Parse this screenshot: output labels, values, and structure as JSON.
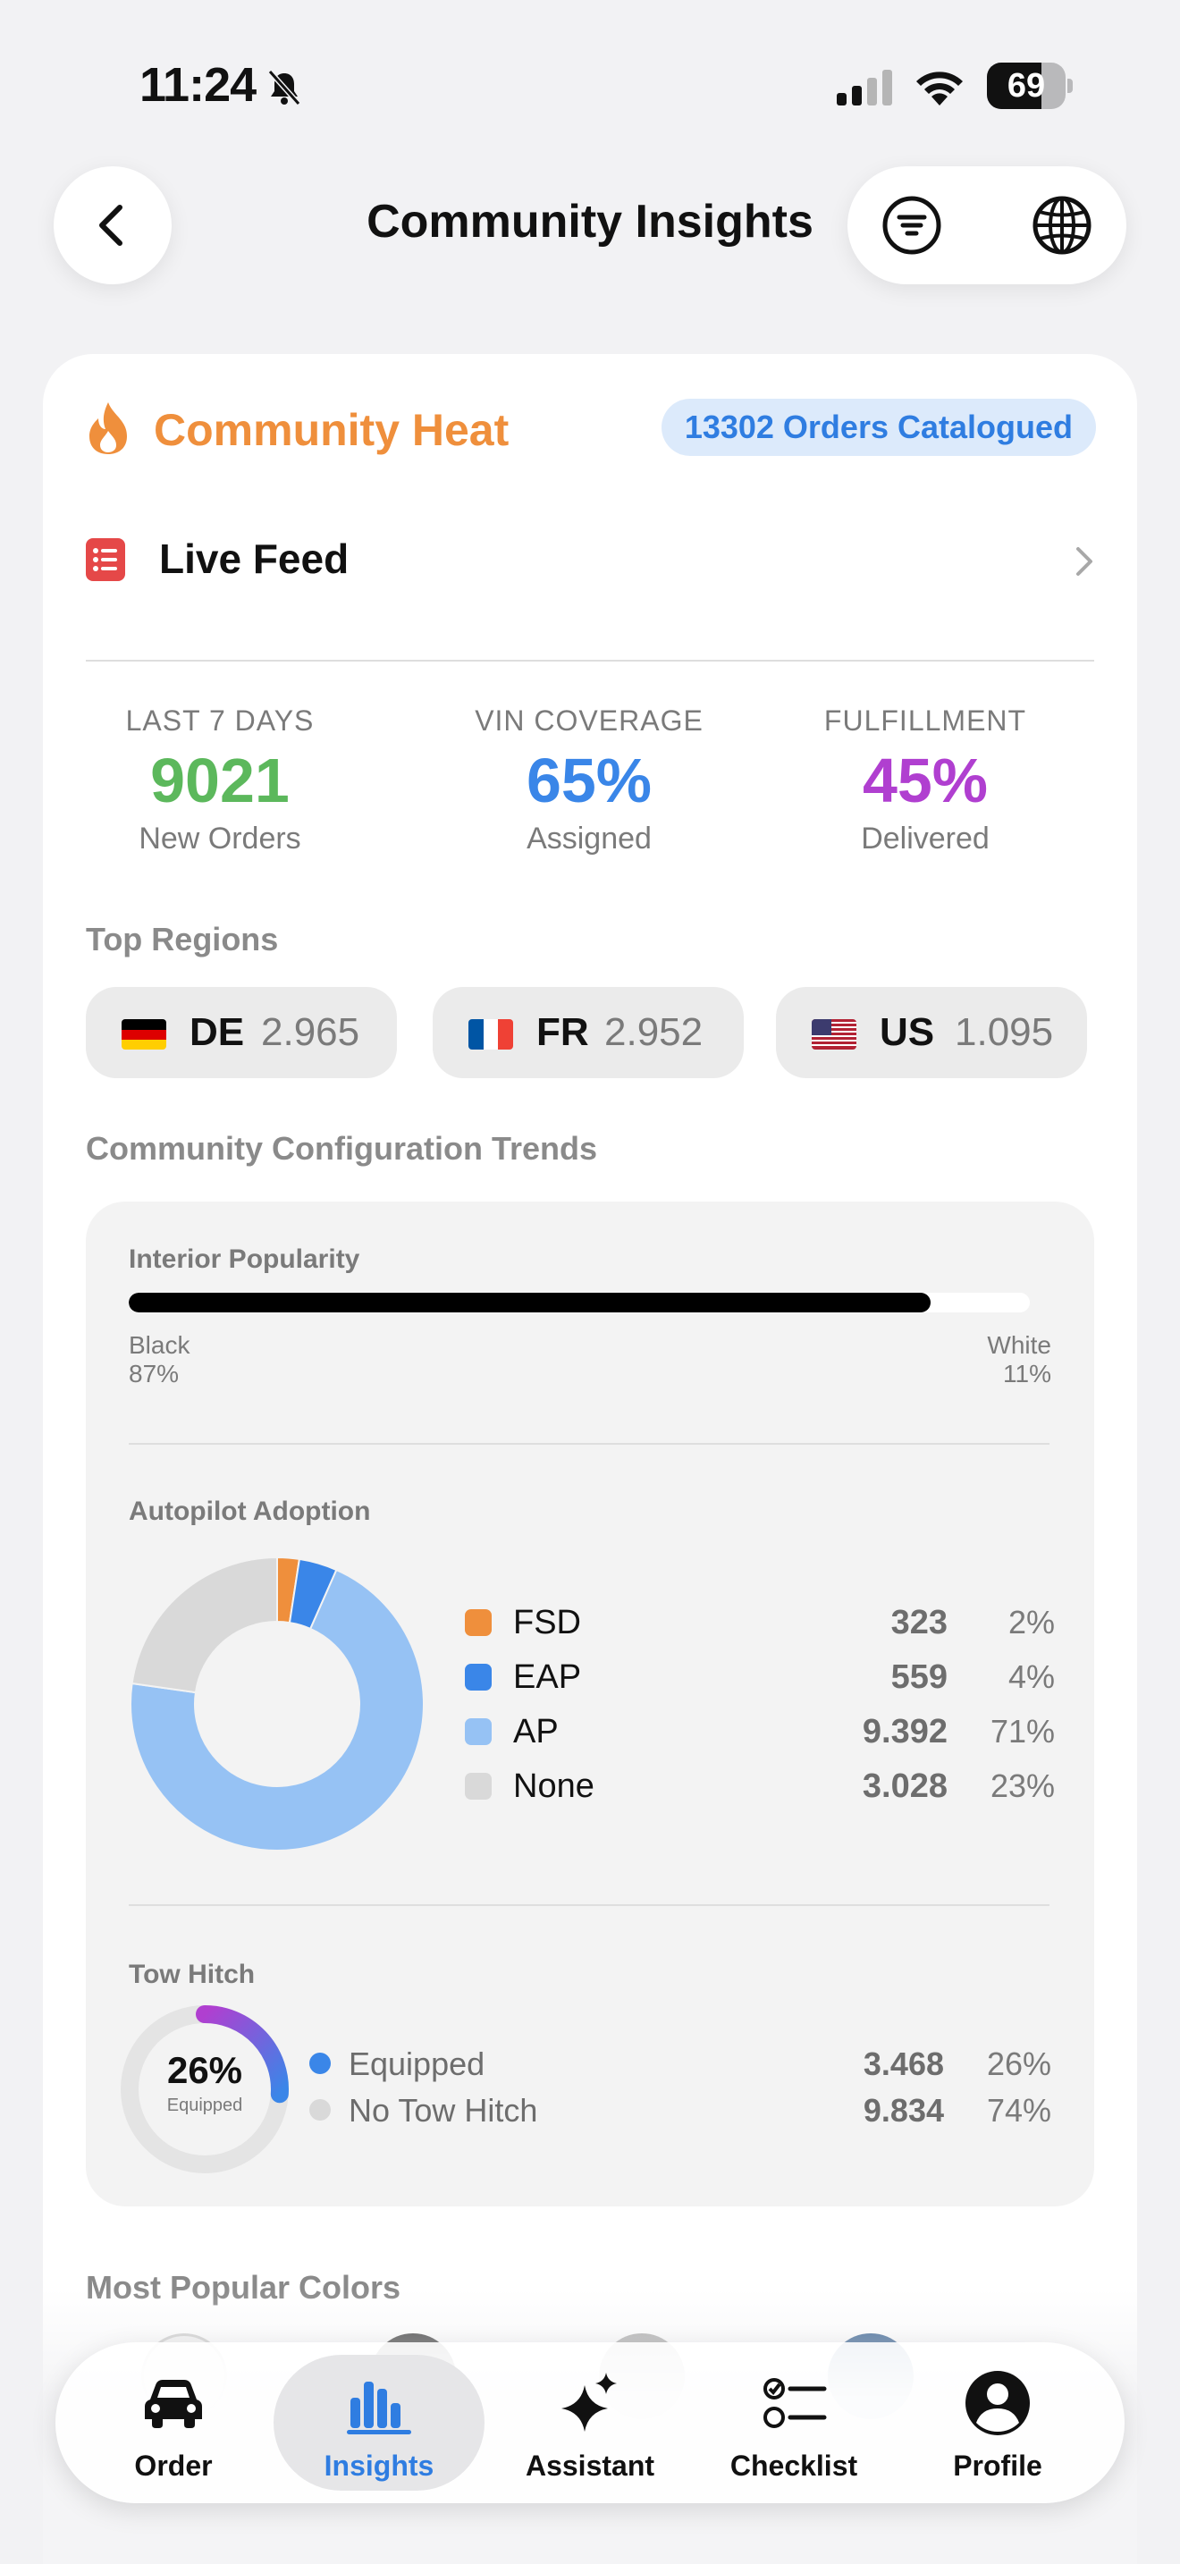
{
  "status_bar": {
    "time": "11:24",
    "battery": "69"
  },
  "nav": {
    "title": "Community Insights"
  },
  "heat": {
    "title": "Community Heat",
    "orders_badge": "13302 Orders Catalogued"
  },
  "live_feed": {
    "label": "Live Feed"
  },
  "stats": [
    {
      "label": "LAST 7 DAYS",
      "value": "9021",
      "sub": "New Orders",
      "color": "#5cb85c"
    },
    {
      "label": "VIN COVERAGE",
      "value": "65%",
      "sub": "Assigned",
      "color": "#3a86e8"
    },
    {
      "label": "FULFILLMENT",
      "value": "45%",
      "sub": "Delivered",
      "color": "#b03fd0"
    }
  ],
  "top_regions": {
    "label": "Top Regions",
    "items": [
      {
        "code": "DE",
        "count": "2.965"
      },
      {
        "code": "FR",
        "count": "2.952"
      },
      {
        "code": "US",
        "count": "1.095"
      }
    ]
  },
  "trends": {
    "label": "Community Configuration Trends",
    "interior": {
      "title": "Interior Popularity",
      "left_name": "Black",
      "left_pct": "87%",
      "right_name": "White",
      "right_pct": "11%",
      "fill_fraction": 0.89
    },
    "autopilot": {
      "title": "Autopilot Adoption",
      "items": [
        {
          "name": "FSD",
          "count": "323",
          "pct": "2%",
          "value": 323,
          "color": "#ef8f3c"
        },
        {
          "name": "EAP",
          "count": "559",
          "pct": "4%",
          "value": 559,
          "color": "#3a86e8"
        },
        {
          "name": "AP",
          "count": "9.392",
          "pct": "71%",
          "value": 9392,
          "color": "#96c2f4"
        },
        {
          "name": "None",
          "count": "3.028",
          "pct": "23%",
          "value": 3028,
          "color": "#d9d9d9"
        }
      ]
    },
    "tow_hitch": {
      "title": "Tow Hitch",
      "center_value": "26%",
      "center_sub": "Equipped",
      "fraction": 0.26,
      "items": [
        {
          "name": "Equipped",
          "count": "3.468",
          "pct": "26%",
          "color": "#3a86e8"
        },
        {
          "name": "No Tow Hitch",
          "count": "9.834",
          "pct": "74%",
          "color": "#d9d9d9"
        }
      ]
    }
  },
  "colors": {
    "label": "Most Popular Colors",
    "swatch_colors": [
      "#f4f4f4",
      "#333333",
      "#a9a9a9",
      "#2d5a8c"
    ]
  },
  "tabbar": {
    "items": [
      {
        "label": "Order",
        "icon": "car-icon"
      },
      {
        "label": "Insights",
        "icon": "bar-chart-icon"
      },
      {
        "label": "Assistant",
        "icon": "sparkles-icon"
      },
      {
        "label": "Checklist",
        "icon": "checklist-icon"
      },
      {
        "label": "Profile",
        "icon": "person-icon"
      }
    ]
  }
}
